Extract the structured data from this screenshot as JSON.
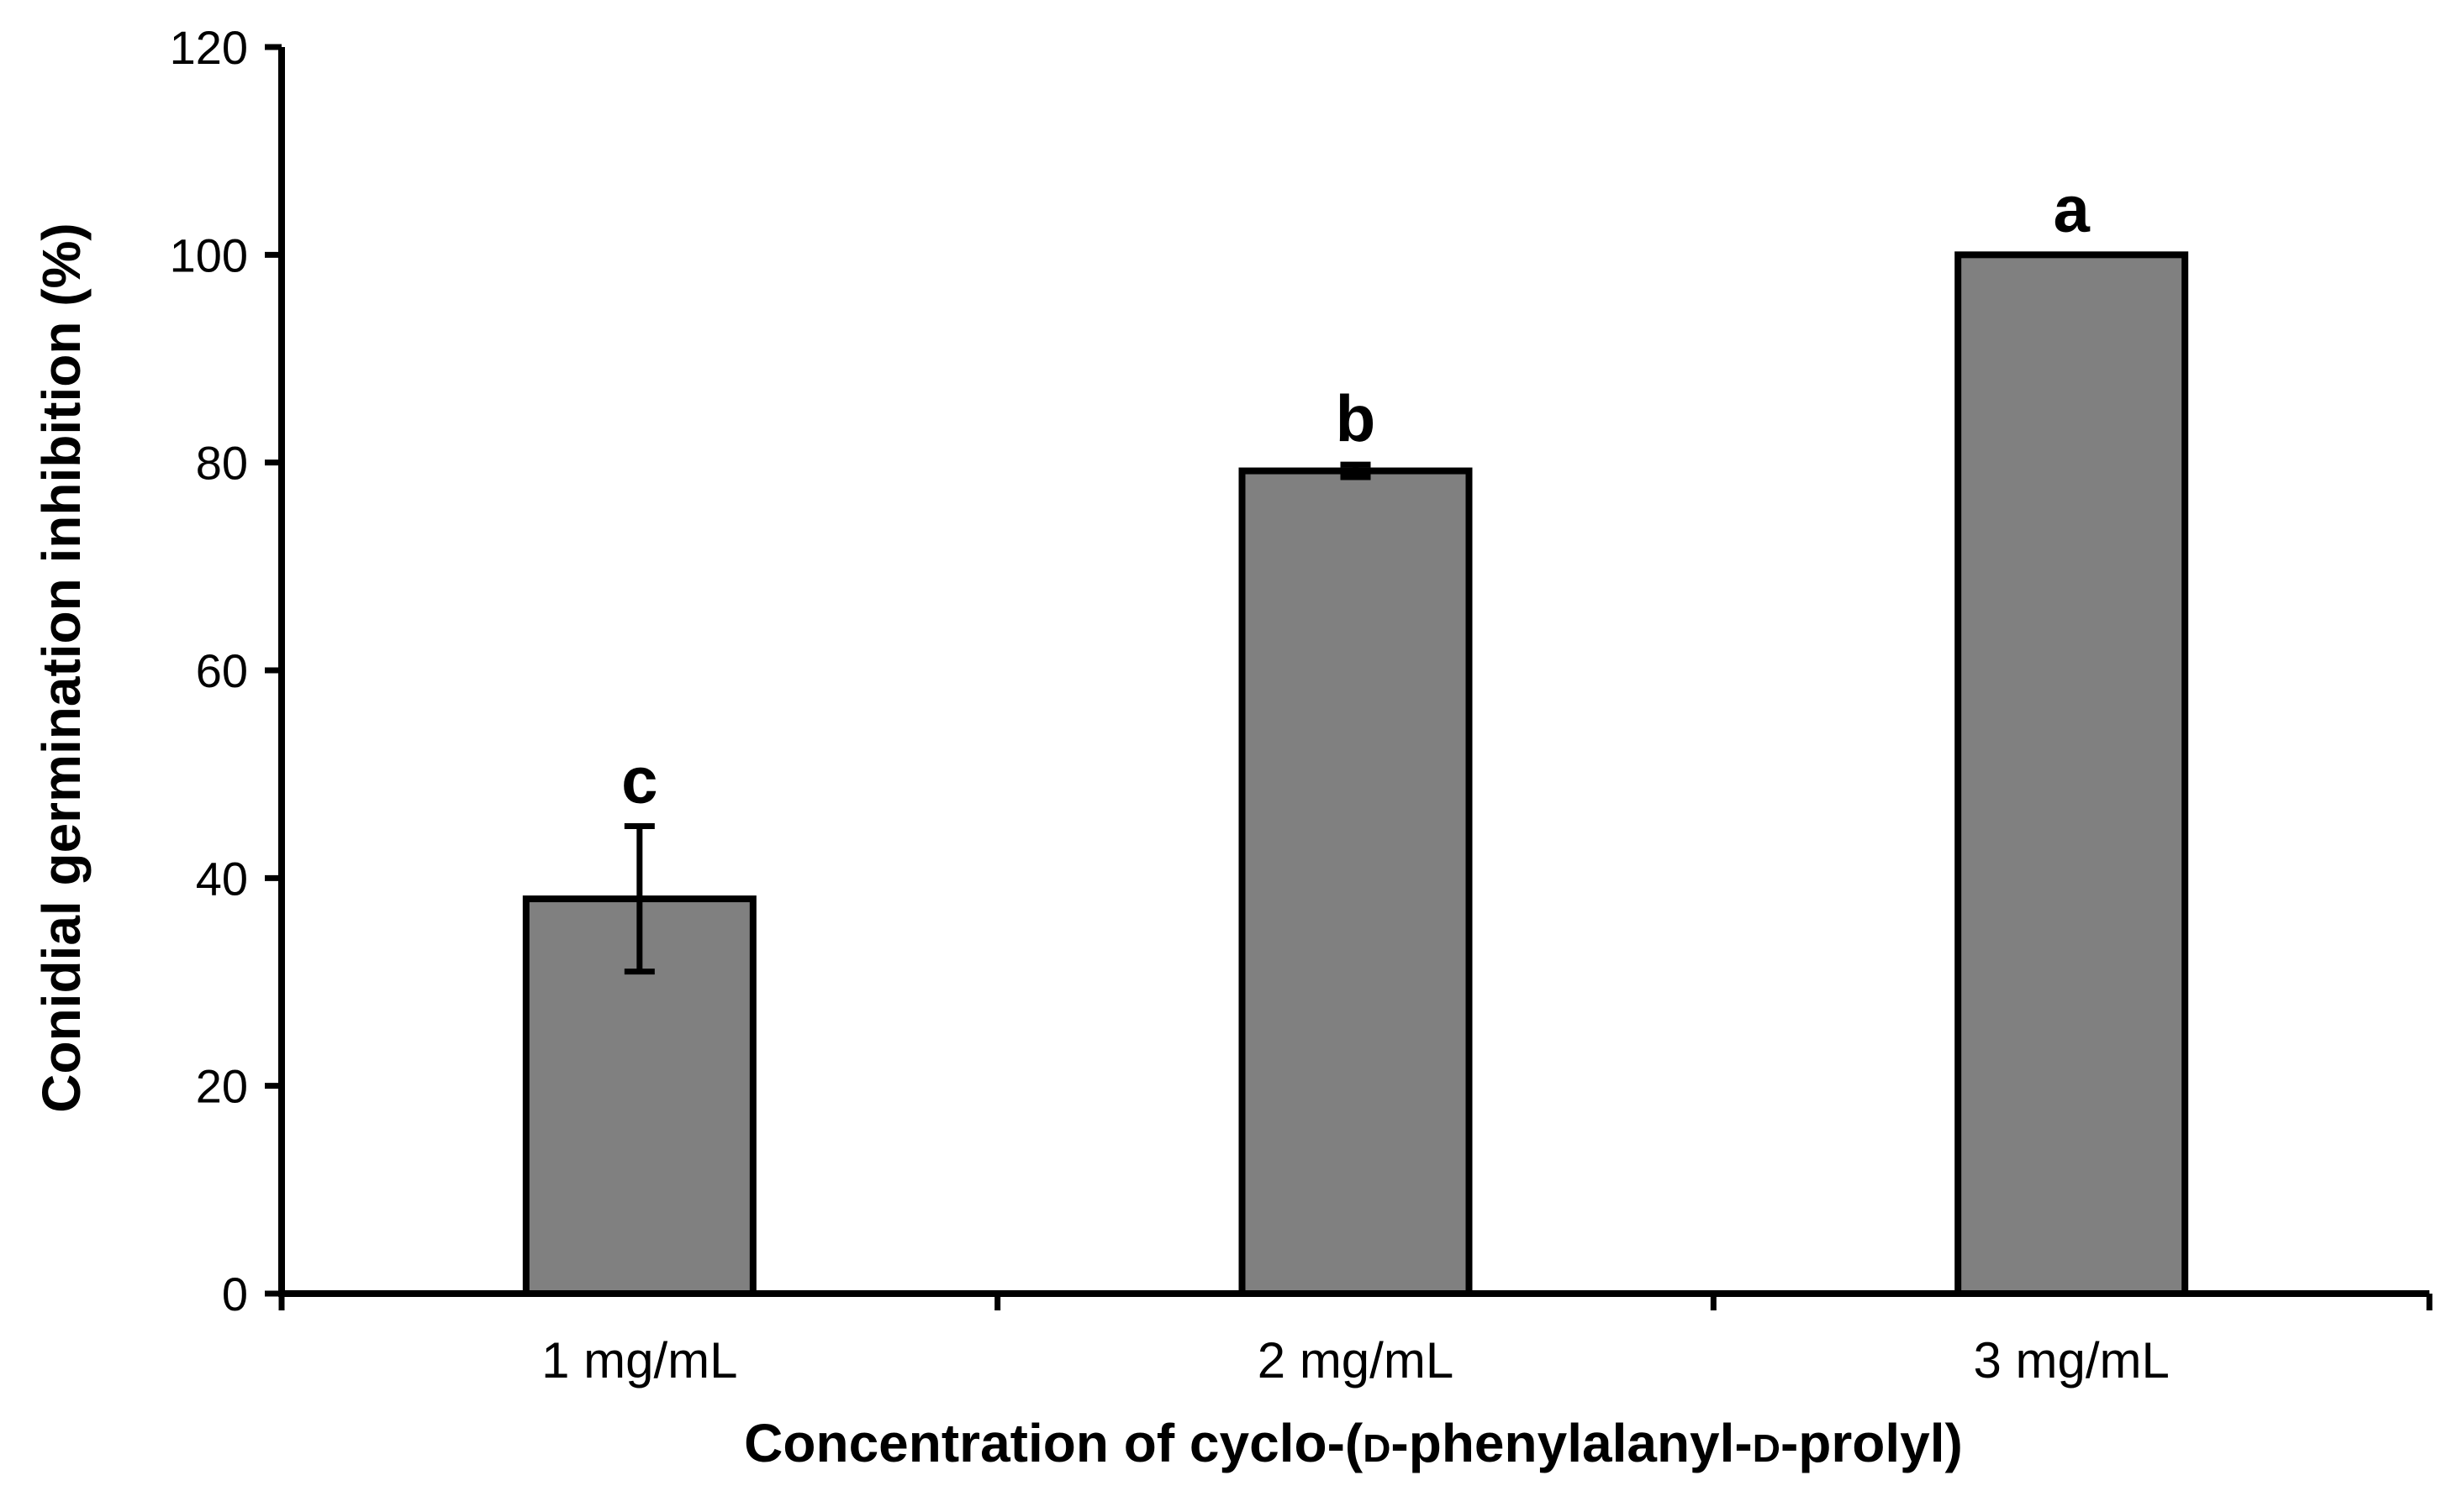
{
  "chart_data": {
    "type": "bar",
    "categories": [
      "1 mg/mL",
      "2 mg/mL",
      "3 mg/mL"
    ],
    "values": [
      38,
      79.2,
      100
    ],
    "errors": [
      7,
      0.6,
      0
    ],
    "significance_letters": [
      "c",
      "b",
      "a"
    ],
    "xlabel": {
      "prefix": "Concentration of cyclo-(",
      "d1": "D",
      "middle": "-phenylalanyl-",
      "d2": "D",
      "suffix": "-prolyl)"
    },
    "ylabel": "Conidial germination inhibition (%)",
    "ylim": [
      0,
      120
    ],
    "yticks": [
      "0",
      "20",
      "40",
      "60",
      "80",
      "100",
      "120"
    ],
    "grid": false,
    "legend": "none",
    "bar_color": "#808080",
    "edge_color": "#000000"
  }
}
